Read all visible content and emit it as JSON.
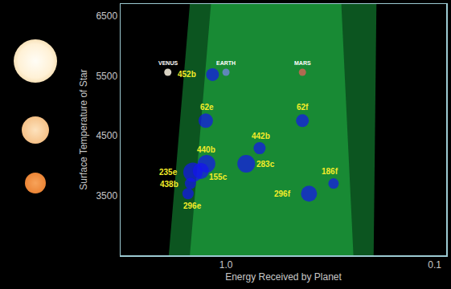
{
  "chart_data": {
    "type": "scatter",
    "x_label": "Energy Received by Planet",
    "y_label": "Surface Temperature of Star",
    "log": "x",
    "grid": false,
    "xlim": [
      3.2,
      0.088
    ],
    "ylim": [
      2500,
      6700
    ],
    "xticks": [
      {
        "value": 1,
        "label": "1.0"
      },
      0.1
    ],
    "yticks": [
      3500,
      4500,
      5500,
      6500
    ],
    "zones": [
      {
        "color": "#0c5520",
        "x": [
          1.49,
          1.88,
          0.196,
          0.19
        ],
        "y": [
          6700,
          2500,
          2500,
          6700
        ]
      },
      {
        "color": "#188a34",
        "x": [
          1.18,
          1.49,
          0.245,
          0.28
        ],
        "y": [
          6700,
          2500,
          2500,
          6700
        ]
      }
    ],
    "series": [
      {
        "type": "scatter",
        "marker": "circle",
        "colors": [
          "#d8d2c2",
          "#5f86b8",
          "#b06a50"
        ],
        "labels": [
          "VENUS",
          "EARTH",
          "MARS"
        ],
        "x": [
          1.9,
          1.0,
          0.43
        ],
        "y": [
          5560,
          5560,
          5560
        ]
      },
      {
        "type": "scatter",
        "marker": "circle",
        "color": "#1414f0",
        "labels": [
          "452b",
          "62e",
          "62f",
          "442b",
          "440b",
          "235e",
          "155c",
          "438b",
          "296e",
          "283c",
          "186f",
          "296f"
        ],
        "x": [
          1.16,
          1.25,
          0.43,
          0.69,
          1.24,
          1.44,
          1.32,
          1.48,
          1.52,
          0.8,
          0.305,
          0.4
        ],
        "y": [
          5520,
          4750,
          4750,
          4290,
          4030,
          3890,
          3910,
          3700,
          3530,
          4030,
          3700,
          3530
        ],
        "sizes": [
          16,
          18,
          16,
          15,
          22,
          24,
          20,
          14,
          14,
          22,
          13,
          20
        ]
      }
    ]
  }
}
